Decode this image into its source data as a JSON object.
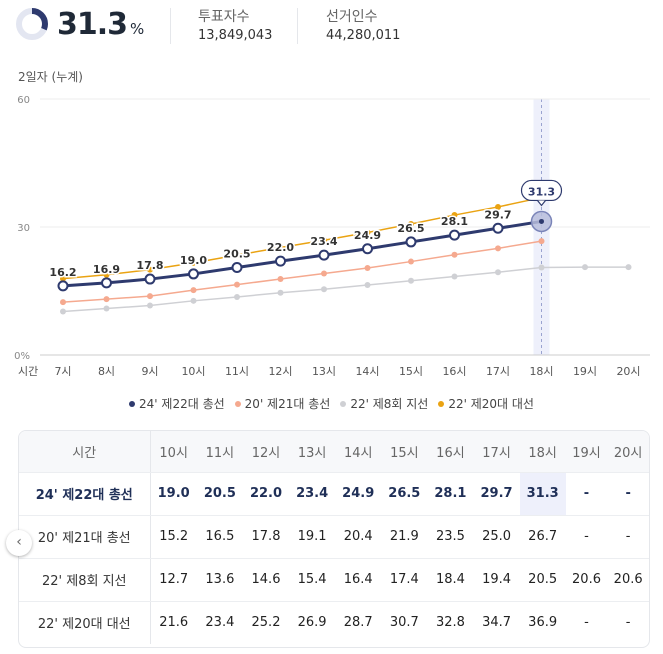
{
  "stats": {
    "rate_value": "31.3",
    "rate_unit": "%",
    "rate_fraction": 0.313,
    "votes_label": "투표자수",
    "votes_value": "13,849,043",
    "electors_label": "선거인수",
    "electors_value": "44,280,011"
  },
  "colors": {
    "navy": "#2e3a6e",
    "salmon": "#f5a98f",
    "gray": "#cfd0d4",
    "orange": "#eaa312",
    "highlight_band": "#eef0fb"
  },
  "chart_data": {
    "type": "line",
    "subtitle": "2일자 (누계)",
    "x_axis_label": "시간",
    "categories": [
      "7시",
      "8시",
      "9시",
      "10시",
      "11시",
      "12시",
      "13시",
      "14시",
      "15시",
      "16시",
      "17시",
      "18시",
      "19시",
      "20시"
    ],
    "y_ticks": [
      "60",
      "30",
      "0%"
    ],
    "ylim": [
      0,
      60
    ],
    "highlight_category": "18시",
    "callout_value": "31.3",
    "series": [
      {
        "name": "24' 제22대 총선",
        "color": "#2e3a6e",
        "values": [
          16.2,
          16.9,
          17.8,
          19.0,
          20.5,
          22.0,
          23.4,
          24.9,
          26.5,
          28.1,
          29.7,
          31.3,
          null,
          null
        ],
        "labels": [
          "16.2",
          "16.9",
          "17.8",
          "19.0",
          "20.5",
          "22.0",
          "23.4",
          "24.9",
          "26.5",
          "28.1",
          "29.7",
          null,
          null,
          null
        ]
      },
      {
        "name": "20' 제21대 총선",
        "color": "#f5a98f",
        "values": [
          12.4,
          13.1,
          13.8,
          15.2,
          16.5,
          17.8,
          19.1,
          20.4,
          21.9,
          23.5,
          25.0,
          26.7,
          null,
          null
        ]
      },
      {
        "name": "22' 제8회 지선",
        "color": "#cfd0d4",
        "values": [
          10.2,
          10.9,
          11.6,
          12.7,
          13.6,
          14.6,
          15.4,
          16.4,
          17.4,
          18.4,
          19.4,
          20.5,
          20.6,
          20.6
        ]
      },
      {
        "name": "22' 제20대 대선",
        "color": "#eaa312",
        "values": [
          17.9,
          18.8,
          20.0,
          21.6,
          23.4,
          25.2,
          26.9,
          28.7,
          30.7,
          32.8,
          34.7,
          36.9,
          null,
          null
        ]
      }
    ]
  },
  "table": {
    "header_label": "시간",
    "columns": [
      "10시",
      "11시",
      "12시",
      "13시",
      "14시",
      "15시",
      "16시",
      "17시",
      "18시",
      "19시",
      "20시"
    ],
    "rows": [
      {
        "name": "24' 제22대 총선",
        "values": [
          "19.0",
          "20.5",
          "22.0",
          "23.4",
          "24.9",
          "26.5",
          "28.1",
          "29.7",
          "31.3",
          "-",
          "-"
        ]
      },
      {
        "name": "20' 제21대 총선",
        "values": [
          "15.2",
          "16.5",
          "17.8",
          "19.1",
          "20.4",
          "21.9",
          "23.5",
          "25.0",
          "26.7",
          "-",
          "-"
        ]
      },
      {
        "name": "22' 제8회 지선",
        "values": [
          "12.7",
          "13.6",
          "14.6",
          "15.4",
          "16.4",
          "17.4",
          "18.4",
          "19.4",
          "20.5",
          "20.6",
          "20.6"
        ]
      },
      {
        "name": "22' 제20대 대선",
        "values": [
          "21.6",
          "23.4",
          "25.2",
          "26.9",
          "28.7",
          "30.7",
          "32.8",
          "34.7",
          "36.9",
          "-",
          "-"
        ]
      }
    ]
  },
  "nav": {
    "scroll_left_icon": "chevron-left-icon",
    "scroll_left_glyph": "‹"
  }
}
